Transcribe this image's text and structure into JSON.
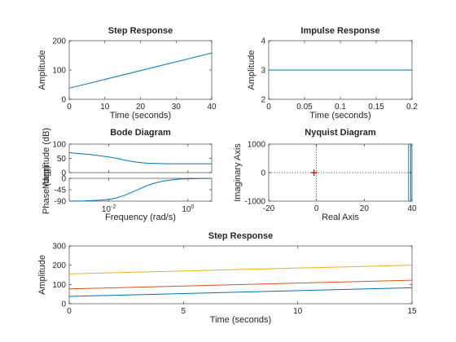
{
  "window": {
    "title": ""
  },
  "colors": {
    "series": [
      "#0072BD",
      "#D95319",
      "#EDB120"
    ],
    "marker": "#cc0000",
    "axes": "#262626"
  },
  "chart_data": [
    {
      "id": "step1",
      "type": "line",
      "title": "Step Response",
      "xlabel": "Time (seconds)",
      "ylabel": "Amplitude",
      "xlim": [
        0,
        40
      ],
      "ylim": [
        0,
        200
      ],
      "xticks": [
        0,
        10,
        20,
        30,
        40
      ],
      "xticklabels": [
        "0",
        "10",
        "20",
        "30",
        "40"
      ],
      "yticks": [
        0,
        100,
        200
      ],
      "yticklabels": [
        "0",
        "100",
        "200"
      ],
      "grid": false,
      "series": [
        {
          "x": [
            0,
            40
          ],
          "y": [
            38,
            158
          ]
        }
      ]
    },
    {
      "id": "impulse",
      "type": "line",
      "title": "Impulse Response",
      "xlabel": "Time (seconds)",
      "ylabel": "Amplitude",
      "xlim": [
        0,
        0.2
      ],
      "ylim": [
        2,
        4
      ],
      "xticks": [
        0,
        0.05,
        0.1,
        0.15,
        0.2
      ],
      "xticklabels": [
        "0",
        "0.05",
        "0.1",
        "0.15",
        "0.2"
      ],
      "yticks": [
        2,
        3,
        4
      ],
      "yticklabels": [
        "2",
        "3",
        "4"
      ],
      "grid": false,
      "series": [
        {
          "x": [
            0,
            0.2
          ],
          "y": [
            3,
            3
          ]
        }
      ]
    },
    {
      "id": "bode_mag",
      "type": "line",
      "title": "Bode Diagram",
      "xlabel": "",
      "ylabel": "Magnitude (dB)",
      "xscale": "log",
      "xlim": [
        -3,
        0.6
      ],
      "ylim": [
        0,
        100
      ],
      "xticks": [
        -2,
        0
      ],
      "xticklabels": [
        "",
        ""
      ],
      "yticks": [
        0,
        50,
        100
      ],
      "yticklabels": [
        "0",
        "50",
        "100"
      ],
      "grid": false,
      "series": [
        {
          "x": [
            -3,
            -2.5,
            -2,
            -1.8,
            -1.6,
            -1.4,
            -1.2,
            -1.0,
            -0.8,
            -0.5,
            0,
            0.6
          ],
          "y": [
            70,
            64,
            55,
            50,
            44,
            39,
            35,
            33,
            32,
            31,
            31,
            31
          ]
        }
      ]
    },
    {
      "id": "bode_phase",
      "type": "line",
      "title": "",
      "xlabel": "Frequency  (rad/s)",
      "ylabel": "Phase (deg)",
      "xscale": "log",
      "xlim": [
        -3,
        0.6
      ],
      "ylim": [
        -90,
        0
      ],
      "xticks": [
        -2,
        0
      ],
      "xticklabels": [
        "10-2",
        "100"
      ],
      "yticks": [
        -90,
        -45,
        0
      ],
      "yticklabels": [
        "-90",
        "-45",
        "0"
      ],
      "grid": false,
      "series": [
        {
          "x": [
            -3,
            -2.6,
            -2.2,
            -2.0,
            -1.8,
            -1.6,
            -1.4,
            -1.2,
            -1.0,
            -0.8,
            -0.6,
            -0.4,
            -0.2,
            0,
            0.3,
            0.6
          ],
          "y": [
            -90,
            -89,
            -86,
            -83,
            -77,
            -67,
            -54,
            -40,
            -27,
            -17,
            -10,
            -6,
            -3,
            -2,
            -1,
            0
          ]
        }
      ]
    },
    {
      "id": "nyquist",
      "type": "line",
      "title": "Nyquist Diagram",
      "xlabel": "Real Axis",
      "ylabel": "Imaginary Axis",
      "xlim": [
        -20,
        40
      ],
      "ylim": [
        -1000,
        1000
      ],
      "xticks": [
        -20,
        0,
        20,
        40
      ],
      "xticklabels": [
        "-20",
        "0",
        "20",
        "40"
      ],
      "yticks": [
        -1000,
        0,
        1000
      ],
      "yticklabels": [
        "-1000",
        "0",
        "1000"
      ],
      "grid": false,
      "critical_point": [
        -1,
        0
      ],
      "series": [
        {
          "x": [
            39.5,
            39.5
          ],
          "y": [
            -1000,
            1000
          ]
        },
        {
          "x": [
            38.6,
            38.6
          ],
          "y": [
            -1000,
            1000
          ]
        }
      ]
    },
    {
      "id": "step2",
      "type": "line",
      "title": "Step Response",
      "xlabel": "Time (seconds)",
      "ylabel": "Amplitude",
      "xlim": [
        0,
        15
      ],
      "ylim": [
        0,
        300
      ],
      "xticks": [
        0,
        5,
        10,
        15
      ],
      "xticklabels": [
        "0",
        "5",
        "10",
        "15"
      ],
      "yticks": [
        0,
        100,
        200,
        300
      ],
      "yticklabels": [
        "0",
        "100",
        "200",
        "300"
      ],
      "grid": false,
      "series": [
        {
          "x": [
            0,
            15
          ],
          "y": [
            38,
            83
          ]
        },
        {
          "x": [
            0,
            15
          ],
          "y": [
            77,
            122
          ]
        },
        {
          "x": [
            0,
            15
          ],
          "y": [
            155,
            200
          ]
        }
      ]
    }
  ]
}
